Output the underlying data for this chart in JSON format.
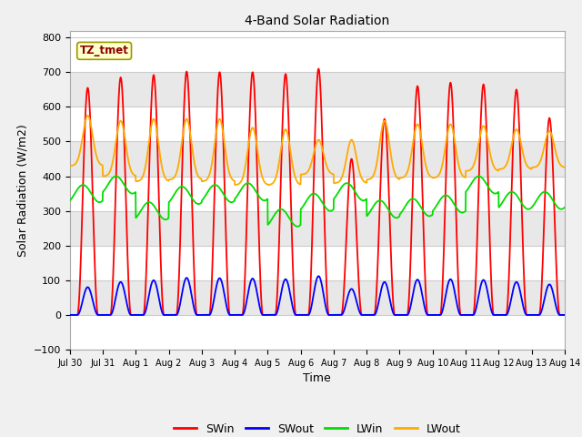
{
  "title": "4-Band Solar Radiation",
  "xlabel": "Time",
  "ylabel": "Solar Radiation (W/m2)",
  "annotation": "TZ_tmet",
  "ylim": [
    -100,
    820
  ],
  "yticks": [
    -100,
    0,
    100,
    200,
    300,
    400,
    500,
    600,
    700,
    800
  ],
  "fig_bg_color": "#f0f0f0",
  "plot_bg_color": "#e8e8e8",
  "colors": {
    "SWin": "#ff0000",
    "SWout": "#0000ff",
    "LWin": "#00dd00",
    "LWout": "#ffaa00"
  },
  "n_days": 15,
  "x_tick_labels": [
    "Jul 30",
    "Jul 31",
    "Aug 1",
    "Aug 2",
    "Aug 3",
    "Aug 4",
    "Aug 5",
    "Aug 6",
    "Aug 7",
    "Aug 8",
    "Aug 9",
    "Aug 10",
    "Aug 11",
    "Aug 12",
    "Aug 13",
    "Aug 14"
  ],
  "SWin_peaks": [
    655,
    685,
    692,
    702,
    700,
    700,
    695,
    710,
    450,
    565,
    660,
    670,
    665,
    650,
    568
  ],
  "SWout_peaks": [
    80,
    95,
    100,
    107,
    106,
    105,
    103,
    112,
    75,
    95,
    102,
    103,
    101,
    95,
    88
  ],
  "LWin_base": [
    350,
    375,
    300,
    345,
    350,
    355,
    280,
    325,
    355,
    305,
    310,
    320,
    375,
    330,
    330
  ],
  "LWout_peaks": [
    575,
    560,
    565,
    565,
    565,
    540,
    535,
    505,
    505,
    560,
    550,
    550,
    545,
    535,
    530
  ],
  "LWout_night": [
    430,
    400,
    385,
    390,
    385,
    375,
    375,
    405,
    380,
    390,
    395,
    395,
    415,
    420,
    425
  ]
}
